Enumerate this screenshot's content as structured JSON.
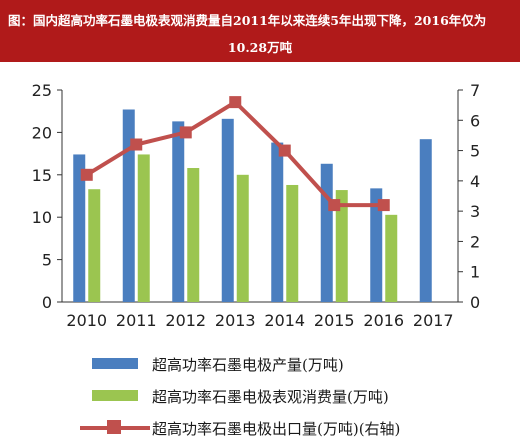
{
  "header": {
    "line1": "图：国内超高功率石墨电极表观消费量自2011年以来连续5年出现下降，2016年仅为",
    "line2": "10.28万吨"
  },
  "colors": {
    "header_bg": "#b01a1a",
    "bar1": "#4a7ebf",
    "bar2": "#9bc550",
    "line": "#c0504d"
  },
  "chart_data": {
    "type": "bar",
    "categories": [
      "2010",
      "2011",
      "2012",
      "2013",
      "2014",
      "2015",
      "2016",
      "2017"
    ],
    "series": [
      {
        "name": "超高功率石墨电极产量(万吨)",
        "type": "bar",
        "axis": "left",
        "values": [
          17.4,
          22.7,
          21.3,
          21.6,
          18.8,
          16.3,
          13.4,
          19.2
        ]
      },
      {
        "name": "超高功率石墨电极表观消费量(万吨)",
        "type": "bar",
        "axis": "left",
        "values": [
          13.3,
          17.4,
          15.8,
          15.0,
          13.8,
          13.2,
          10.28,
          null
        ]
      },
      {
        "name": "超高功率石墨电极出口量(万吨)(右轴)",
        "type": "line",
        "axis": "right",
        "values": [
          4.2,
          5.2,
          5.6,
          6.6,
          5.0,
          3.2,
          3.2,
          null
        ]
      }
    ],
    "y_left": {
      "ylim": [
        0,
        25
      ],
      "ticks": [
        "0",
        "5",
        "10",
        "15",
        "20",
        "25"
      ]
    },
    "y_right": {
      "ylim": [
        0,
        7
      ],
      "ticks": [
        "0",
        "1",
        "2",
        "3",
        "4",
        "5",
        "6",
        "7"
      ]
    },
    "grid": false,
    "legend_position": "bottom"
  }
}
